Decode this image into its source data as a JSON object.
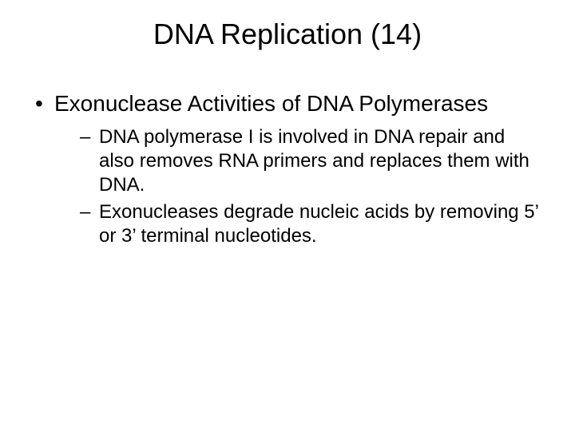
{
  "slide": {
    "background_color": "#ffffff",
    "text_color": "#000000",
    "title": "DNA Replication (14)",
    "title_fontsize": 36,
    "bullets_level1": [
      {
        "text": "Exonuclease Activities of DNA Polymerases",
        "fontsize": 28,
        "children": [
          {
            "text": "DNA polymerase I is involved in DNA repair and also removes RNA primers and replaces them with DNA.",
            "fontsize": 24
          },
          {
            "text": "Exonucleases degrade nucleic acids by removing 5’ or 3’ terminal nucleotides.",
            "fontsize": 24
          }
        ]
      }
    ]
  }
}
